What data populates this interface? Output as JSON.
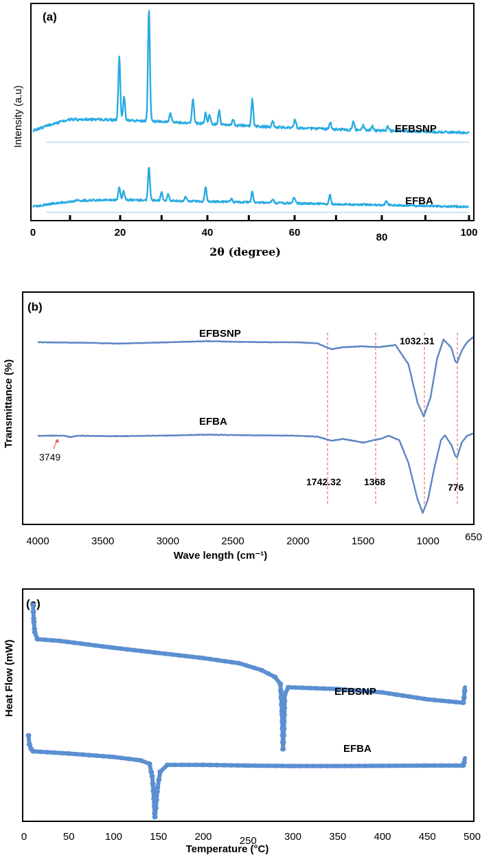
{
  "chart_data": [
    {
      "panel": "(a)",
      "type": "line",
      "xlabel": "2θ (degree)",
      "ylabel": "Intensity (a.u)",
      "xlim": [
        0,
        100
      ],
      "x_ticks": [
        "0",
        "20",
        "40",
        "60",
        "80",
        "100"
      ],
      "grid": false,
      "color": "#29abe2",
      "series": [
        {
          "name": "EFBSNP",
          "baseline": [
            [
              0,
              0.08
            ],
            [
              3,
              0.12
            ],
            [
              8,
              0.18
            ],
            [
              15,
              0.18
            ],
            [
              30,
              0.16
            ],
            [
              50,
              0.12
            ],
            [
              70,
              0.09
            ],
            [
              100,
              0.06
            ]
          ],
          "peaks": [
            [
              19.8,
              0.58
            ],
            [
              20.9,
              0.22
            ],
            [
              26.6,
              1.0
            ],
            [
              31.5,
              0.08
            ],
            [
              36.7,
              0.22
            ],
            [
              39.6,
              0.1
            ],
            [
              40.5,
              0.08
            ],
            [
              42.7,
              0.12
            ],
            [
              45.9,
              0.06
            ],
            [
              50.3,
              0.24
            ],
            [
              55.0,
              0.05
            ],
            [
              60.1,
              0.08
            ],
            [
              68.2,
              0.06
            ],
            [
              73.5,
              0.08
            ],
            [
              75.7,
              0.04
            ],
            [
              77.8,
              0.04
            ],
            [
              81.4,
              0.04
            ]
          ]
        },
        {
          "name": "EFBA",
          "baseline": [
            [
              0,
              0.04
            ],
            [
              5,
              0.08
            ],
            [
              10,
              0.11
            ],
            [
              20,
              0.12
            ],
            [
              40,
              0.1
            ],
            [
              60,
              0.08
            ],
            [
              80,
              0.06
            ],
            [
              100,
              0.04
            ]
          ],
          "peaks": [
            [
              19.8,
              0.14
            ],
            [
              20.8,
              0.1
            ],
            [
              26.6,
              0.38
            ],
            [
              29.5,
              0.1
            ],
            [
              31.0,
              0.07
            ],
            [
              35.0,
              0.05
            ],
            [
              39.6,
              0.16
            ],
            [
              45.5,
              0.04
            ],
            [
              50.3,
              0.12
            ],
            [
              55.0,
              0.04
            ],
            [
              59.9,
              0.07
            ],
            [
              68.1,
              0.1
            ],
            [
              81.1,
              0.05
            ]
          ]
        }
      ]
    },
    {
      "panel": "(b)",
      "type": "line",
      "xlabel": "Wave length (cm⁻¹)",
      "ylabel": "Transmittance (%)",
      "xlim": [
        4000,
        650
      ],
      "x_ticks": [
        "4000",
        "3500",
        "3000",
        "2500",
        "2000",
        "1500",
        "1000",
        "650"
      ],
      "grid": false,
      "color": "#5b85c5",
      "annotations": [
        "3749",
        "1742.32",
        "1368",
        "1032.31",
        "776"
      ],
      "reference_lines_cm": [
        1742.32,
        1368,
        1032.31,
        776
      ],
      "series": [
        {
          "name": "EFBSNP",
          "points": [
            [
              4000,
              100
            ],
            [
              3600,
              99.8
            ],
            [
              3400,
              99.5
            ],
            [
              3000,
              100
            ],
            [
              2700,
              100.4
            ],
            [
              2500,
              100.2
            ],
            [
              2200,
              100
            ],
            [
              2000,
              100
            ],
            [
              1850,
              99.6
            ],
            [
              1742,
              97.5
            ],
            [
              1650,
              98.2
            ],
            [
              1500,
              98.5
            ],
            [
              1368,
              98.3
            ],
            [
              1250,
              99.0
            ],
            [
              1150,
              92
            ],
            [
              1080,
              78
            ],
            [
              1032,
              73
            ],
            [
              980,
              80
            ],
            [
              930,
              94
            ],
            [
              880,
              101
            ],
            [
              820,
              98
            ],
            [
              790,
              93
            ],
            [
              776,
              92.5
            ],
            [
              740,
              97
            ],
            [
              700,
              100
            ],
            [
              650,
              102
            ]
          ]
        },
        {
          "name": "EFBA",
          "points": [
            [
              4000,
              100
            ],
            [
              3800,
              100
            ],
            [
              3749,
              99.4
            ],
            [
              3700,
              100
            ],
            [
              3400,
              99.8
            ],
            [
              3000,
              100.1
            ],
            [
              2700,
              100.5
            ],
            [
              2500,
              100.3
            ],
            [
              2000,
              100
            ],
            [
              1850,
              99.6
            ],
            [
              1742,
              97.8
            ],
            [
              1650,
              98.6
            ],
            [
              1500,
              97
            ],
            [
              1368,
              98.6
            ],
            [
              1300,
              100
            ],
            [
              1220,
              98
            ],
            [
              1150,
              88
            ],
            [
              1080,
              72
            ],
            [
              1040,
              66
            ],
            [
              1000,
              72
            ],
            [
              950,
              86
            ],
            [
              900,
              98
            ],
            [
              870,
              100.2
            ],
            [
              820,
              96
            ],
            [
              790,
              91
            ],
            [
              776,
              90.5
            ],
            [
              740,
              97
            ],
            [
              700,
              100
            ],
            [
              650,
              101
            ]
          ]
        }
      ]
    },
    {
      "panel": "(c)",
      "type": "line",
      "xlabel": "Temperature (°C)",
      "ylabel": "Heat Flow (mW)",
      "xlim": [
        0,
        500
      ],
      "x_ticks": [
        "0",
        "50",
        "100",
        "150",
        "200",
        "250",
        "300",
        "350",
        "400",
        "450",
        "500"
      ],
      "grid": false,
      "color": "#5b8fd1",
      "series": [
        {
          "name": "EFBSNP",
          "points": [
            [
              10,
              16
            ],
            [
              11,
              11
            ],
            [
              12,
              8
            ],
            [
              15,
              6
            ],
            [
              40,
              5.5
            ],
            [
              100,
              3.5
            ],
            [
              150,
              2
            ],
            [
              200,
              0.5
            ],
            [
              240,
              -1
            ],
            [
              265,
              -3
            ],
            [
              280,
              -5
            ],
            [
              286,
              -7
            ],
            [
              287,
              -11
            ],
            [
              288,
              -16
            ],
            [
              289,
              -26
            ],
            [
              290,
              -20
            ],
            [
              291,
              -10
            ],
            [
              295,
              -8
            ],
            [
              350,
              -8.5
            ],
            [
              400,
              -9.5
            ],
            [
              450,
              -11.5
            ],
            [
              490,
              -12.5
            ],
            [
              491,
              -11
            ],
            [
              492,
              -8
            ]
          ]
        },
        {
          "name": "EFBA",
          "points": [
            [
              5,
              10
            ],
            [
              6,
              6
            ],
            [
              8,
              4
            ],
            [
              10,
              3
            ],
            [
              50,
              2
            ],
            [
              100,
              0.5
            ],
            [
              130,
              -1
            ],
            [
              140,
              -2.5
            ],
            [
              143,
              -8
            ],
            [
              145,
              -18
            ],
            [
              146,
              -26
            ],
            [
              147,
              -22
            ],
            [
              149,
              -13
            ],
            [
              152,
              -6
            ],
            [
              160,
              -3
            ],
            [
              200,
              -3
            ],
            [
              250,
              -3.3
            ],
            [
              300,
              -3.5
            ],
            [
              350,
              -3.5
            ],
            [
              400,
              -3.4
            ],
            [
              450,
              -3.3
            ],
            [
              490,
              -3.3
            ],
            [
              491,
              -2
            ],
            [
              492,
              0
            ]
          ]
        }
      ]
    }
  ],
  "panels": {
    "a": {
      "label": "(a)",
      "series_labels": [
        "EFBSNP",
        "EFBA"
      ]
    },
    "b": {
      "label": "(b)",
      "series_labels": [
        "EFBSNP",
        "EFBA"
      ]
    },
    "c": {
      "label": "(c)",
      "series_labels": [
        "EFBSNP",
        "EFBA"
      ]
    }
  }
}
